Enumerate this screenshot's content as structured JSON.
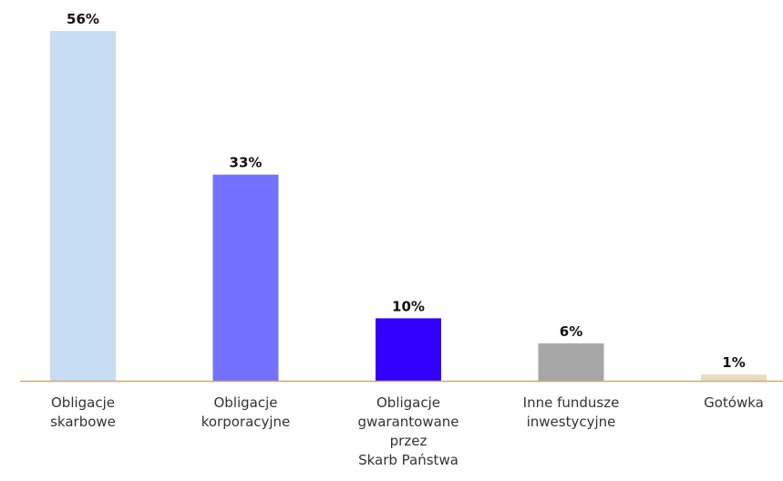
{
  "chart_data": {
    "type": "bar",
    "categories": [
      [
        "Obligacje",
        "skarbowe"
      ],
      [
        "Obligacje",
        "korporacyjne"
      ],
      [
        "Obligacje",
        "gwarantowane",
        "przez",
        "Skarb Państwa"
      ],
      [
        "Inne fundusze",
        "inwestycyjne"
      ],
      [
        "Gotówka"
      ]
    ],
    "values": [
      56,
      33,
      10,
      6,
      1
    ],
    "value_labels": [
      "56%",
      "33%",
      "10%",
      "6%",
      "1%"
    ],
    "colors": [
      "#c7ddf4",
      "#7471ff",
      "#3300ff",
      "#a6a6a6",
      "#e8dcc3"
    ],
    "axis_color": "#c9a97a",
    "ylim": [
      0,
      56
    ],
    "grid": false,
    "legend": "none"
  }
}
